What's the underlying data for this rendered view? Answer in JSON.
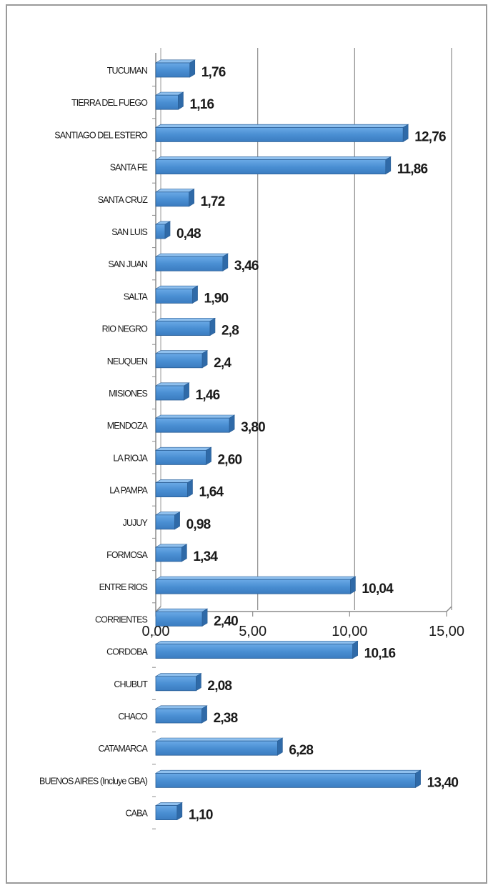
{
  "chart_data": {
    "type": "bar",
    "orientation": "horizontal",
    "categories": [
      "TUCUMAN",
      "TIERRA DEL FUEGO",
      "SANTIAGO DEL ESTERO",
      "SANTA FE",
      "SANTA CRUZ",
      "SAN LUIS",
      "SAN JUAN",
      "SALTA",
      "RIO NEGRO",
      "NEUQUEN",
      "MISIONES",
      "MENDOZA",
      "LA RIOJA",
      "LA PAMPA",
      "JUJUY",
      "FORMOSA",
      "ENTRE RIOS",
      "CORRIENTES",
      "CORDOBA",
      "CHUBUT",
      "CHACO",
      "CATAMARCA",
      "BUENOS AIRES (Incluye GBA)",
      "CABA"
    ],
    "values": [
      1.76,
      1.16,
      12.76,
      11.86,
      1.72,
      0.48,
      3.46,
      1.9,
      2.8,
      2.4,
      1.46,
      3.8,
      2.6,
      1.64,
      0.98,
      1.34,
      10.04,
      2.4,
      10.16,
      2.08,
      2.38,
      6.28,
      13.4,
      1.1
    ],
    "value_labels": [
      "1,76",
      "1,16",
      "12,76",
      "11,86",
      "1,72",
      "0,48",
      "3,46",
      "1,90",
      "2,8",
      "2,4",
      "1,46",
      "3,80",
      "2,60",
      "1,64",
      "0,98",
      "1,34",
      "10,04",
      "2,40",
      "10,16",
      "2,08",
      "2,38",
      "6,28",
      "13,40",
      "1,10"
    ],
    "xlim": [
      0,
      15
    ],
    "xticks": [
      0,
      5,
      10,
      15
    ],
    "xtick_labels": [
      "0,00",
      "5,00",
      "10,00",
      "15,00"
    ],
    "grid": true,
    "bar_color": "#4a8fd3",
    "bar_edge_color": "#2a5e95"
  }
}
